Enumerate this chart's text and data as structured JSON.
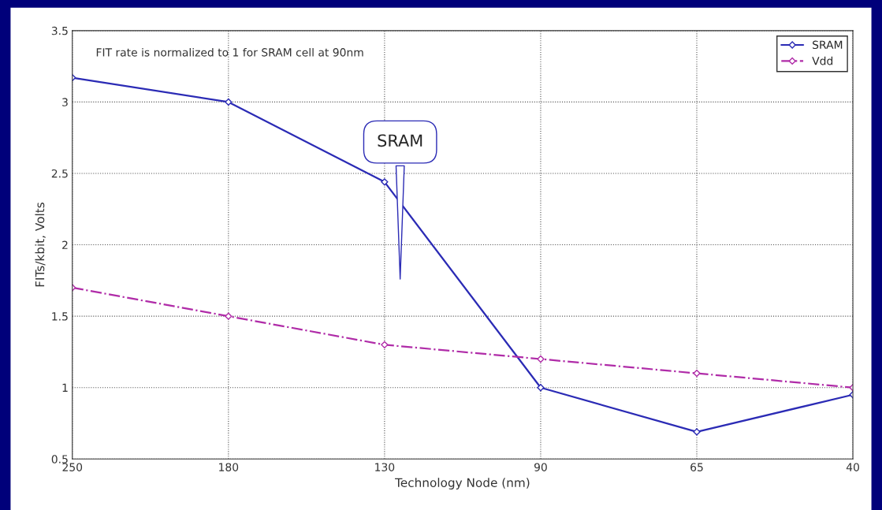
{
  "chart_data": {
    "type": "line",
    "xlabel": "Technology Node (nm)",
    "ylabel": "FITs/kbit, Volts",
    "categories": [
      "250",
      "180",
      "130",
      "90",
      "65",
      "40"
    ],
    "series": [
      {
        "name": "SRAM",
        "color": "#2b2bb5",
        "values": [
          3.17,
          3.0,
          2.44,
          1.0,
          0.69,
          0.95
        ],
        "line_style": "solid"
      },
      {
        "name": "Vdd",
        "color": "#b02ca8",
        "values": [
          1.7,
          1.5,
          1.3,
          1.2,
          1.1,
          1.0
        ],
        "line_style": "dashed"
      }
    ],
    "ylim": [
      0.5,
      3.5
    ],
    "yticks": [
      0.5,
      1,
      1.5,
      2,
      2.5,
      3,
      3.5
    ],
    "grid": true,
    "legend": "top right",
    "marker": "diamond",
    "annotations": [
      "FIT rate is normalized to 1 for SRAM cell at 90nm",
      "SRAM"
    ]
  }
}
